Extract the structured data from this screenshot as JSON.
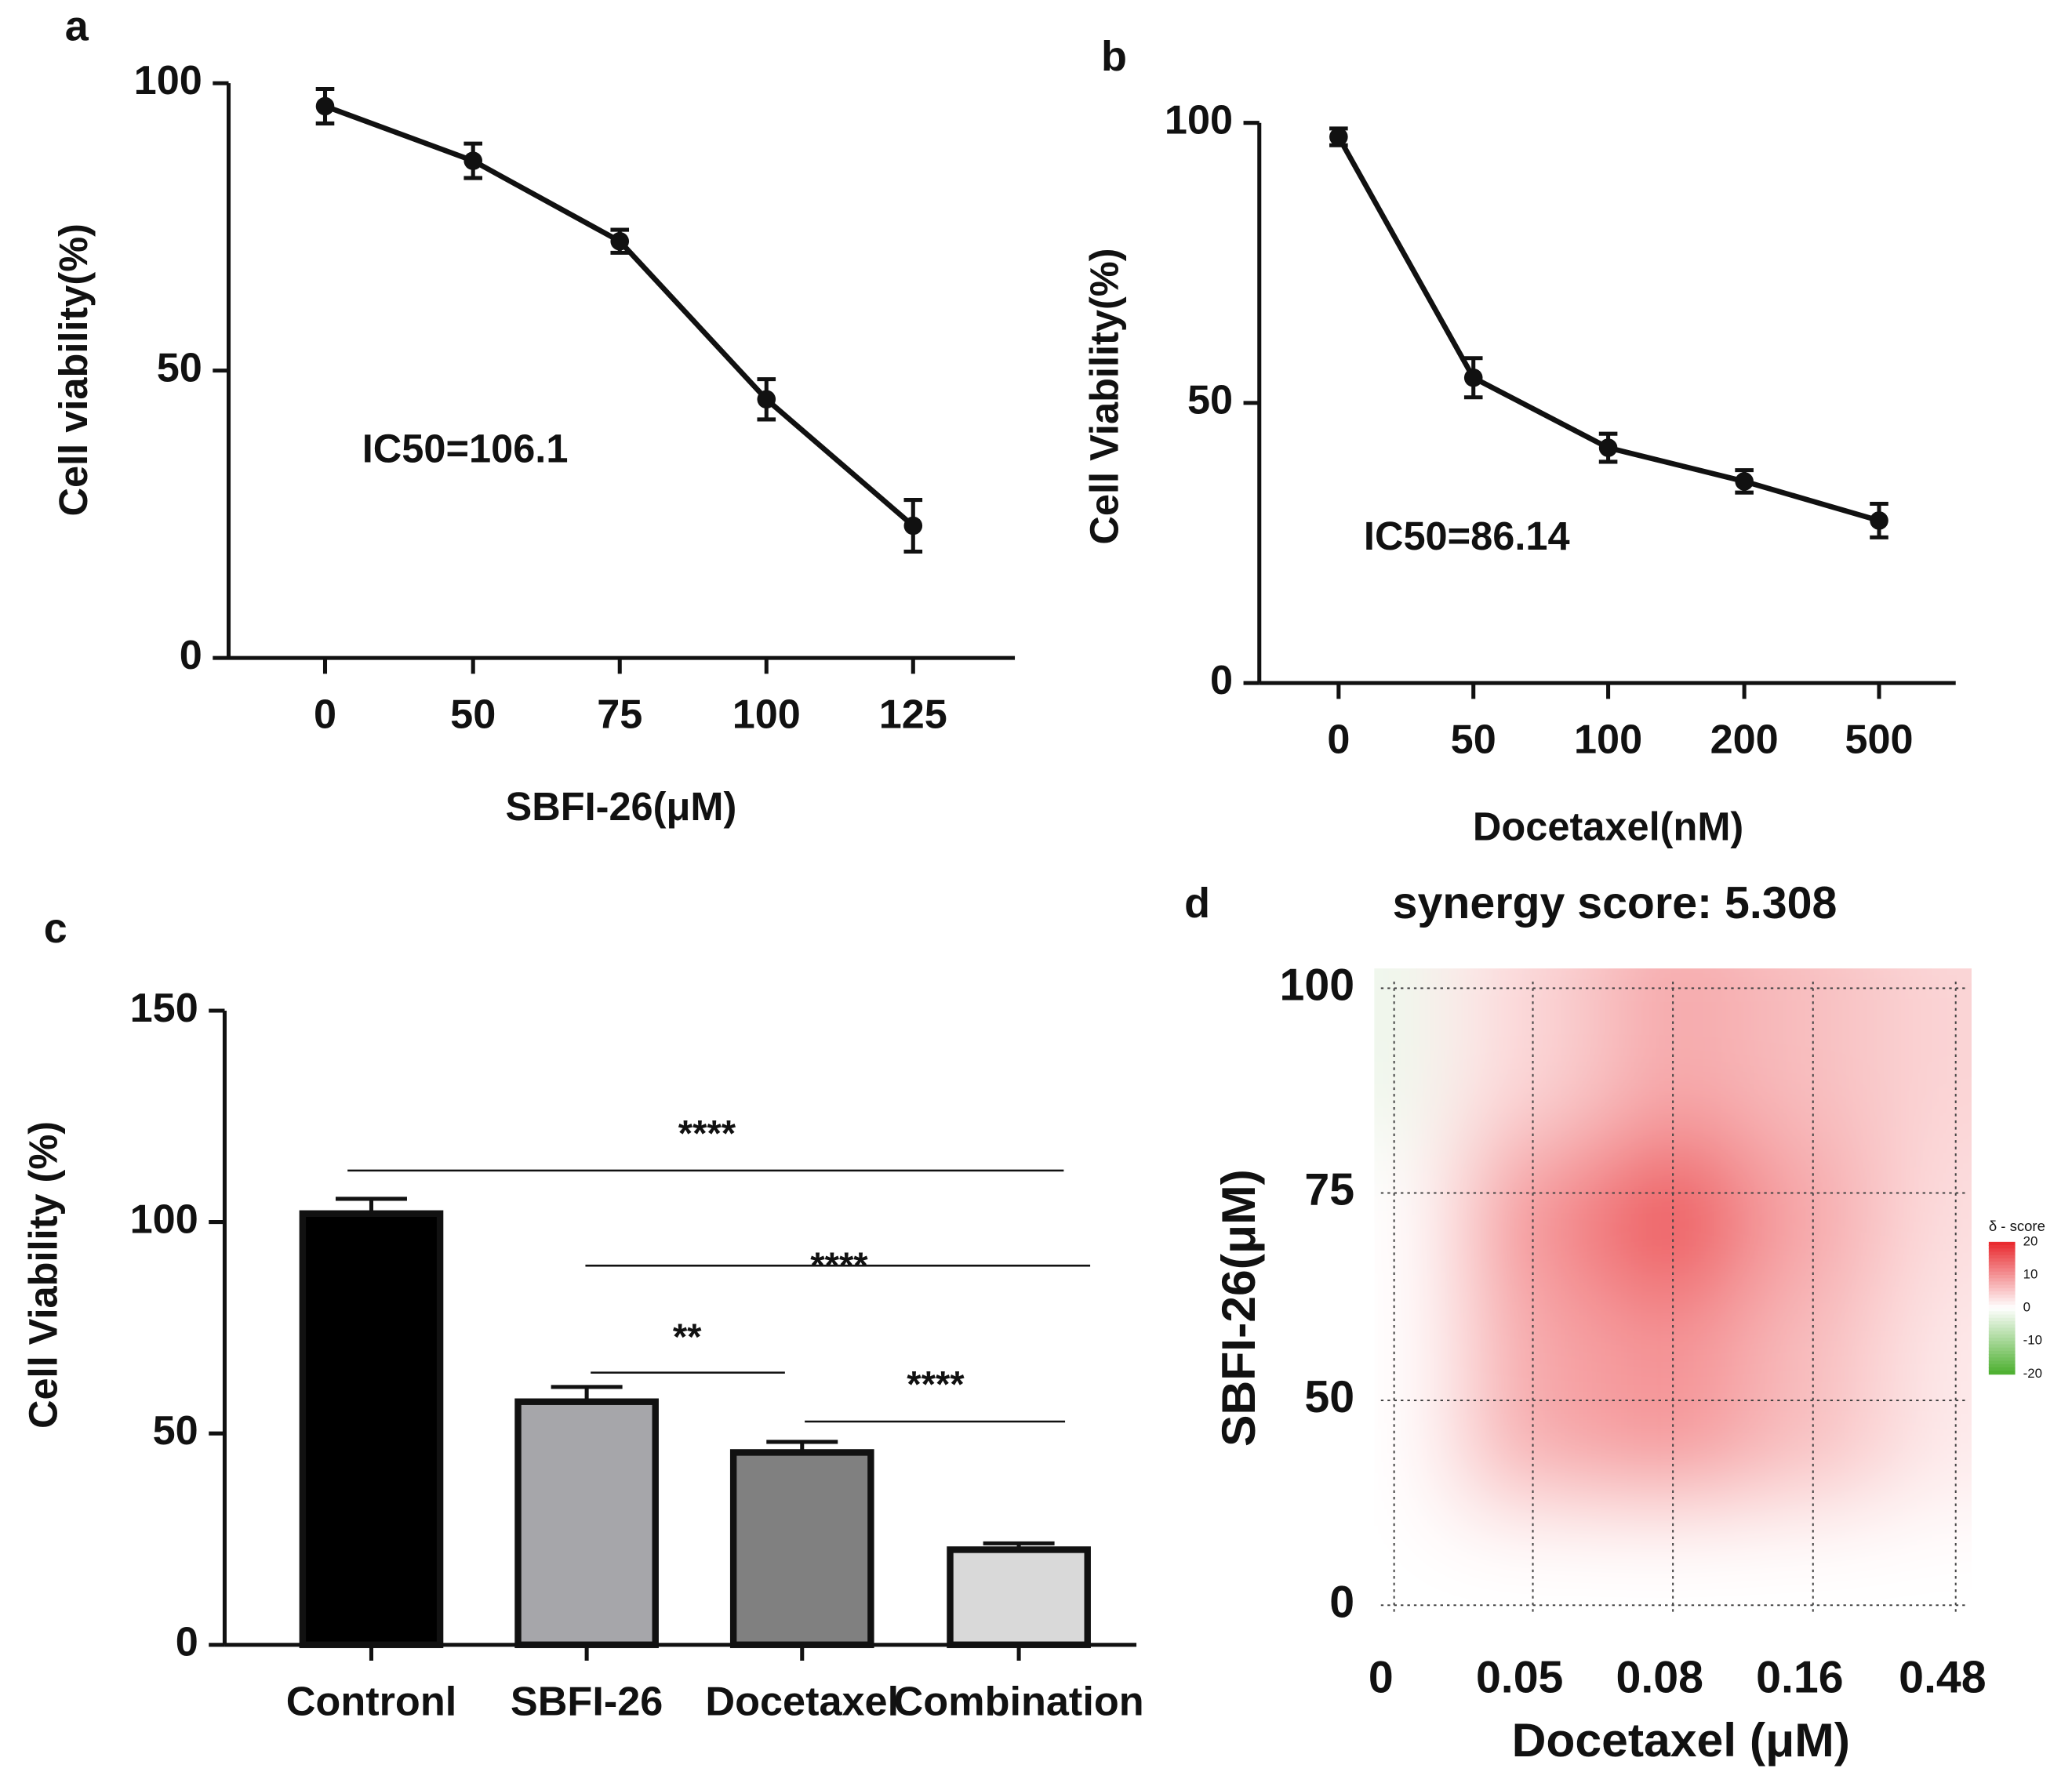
{
  "chart_data": [
    {
      "type": "line",
      "panel": "a",
      "xlabel": "SBFI-26(μM)",
      "ylabel": "Cell viability(%)",
      "annotation": "IC50=106.1",
      "categories": [
        "0",
        "50",
        "75",
        "100",
        "125"
      ],
      "values": [
        96,
        86.5,
        72.5,
        45,
        23
      ],
      "errors": [
        3,
        3,
        2,
        3.5,
        4.5
      ],
      "color": "#111111",
      "ylim": [
        0,
        100
      ],
      "yticks": [
        0,
        50,
        100
      ]
    },
    {
      "type": "line",
      "panel": "b",
      "xlabel": "Docetaxel(nM)",
      "ylabel": "Cell Viability(%)",
      "annotation": "IC50=86.14",
      "categories": [
        "0",
        "50",
        "100",
        "200",
        "500"
      ],
      "values": [
        97.5,
        54.5,
        42,
        36,
        29
      ],
      "errors": [
        1.5,
        3.5,
        2.5,
        2,
        3
      ],
      "color": "#111111",
      "ylim": [
        0,
        100
      ],
      "yticks": [
        0,
        50,
        100
      ]
    },
    {
      "type": "bar",
      "panel": "c",
      "ylabel": "Cell Viability (%)",
      "categories": [
        "Contronl",
        "SBFI-26",
        "Docetaxel",
        "Combination"
      ],
      "values": [
        102,
        57.5,
        45.5,
        22.5
      ],
      "errors": [
        3.5,
        3.5,
        2.5,
        1.5
      ],
      "colors": [
        "#000000",
        "#a6a6aa",
        "#808080",
        "#d9d9d9"
      ],
      "ylim": [
        0,
        150
      ],
      "yticks": [
        0,
        50,
        100,
        150
      ],
      "significance": [
        "****",
        "****",
        "**",
        "****"
      ]
    },
    {
      "type": "heatmap",
      "panel": "d",
      "title": "synergy score: 5.308",
      "xlabel": "Docetaxel (μM)",
      "ylabel": "SBFI-26(μM)",
      "x": [
        "0",
        "0.05",
        "0.08",
        "0.16",
        "0.48"
      ],
      "y": [
        "0",
        "50",
        "75",
        "100"
      ],
      "z": [
        [
          0,
          0,
          0,
          0,
          0
        ],
        [
          0,
          8,
          10,
          6,
          2
        ],
        [
          0,
          10,
          16,
          8,
          3
        ],
        [
          -3,
          4,
          8,
          6,
          4
        ]
      ],
      "colorscale": [
        "#4caf2e",
        "#ffffff",
        "#e8262b"
      ],
      "zlim": [
        -20,
        20
      ],
      "colorbar": {
        "title": "δ - score",
        "ticks": [
          20,
          10,
          0,
          -10,
          -20
        ]
      }
    }
  ]
}
